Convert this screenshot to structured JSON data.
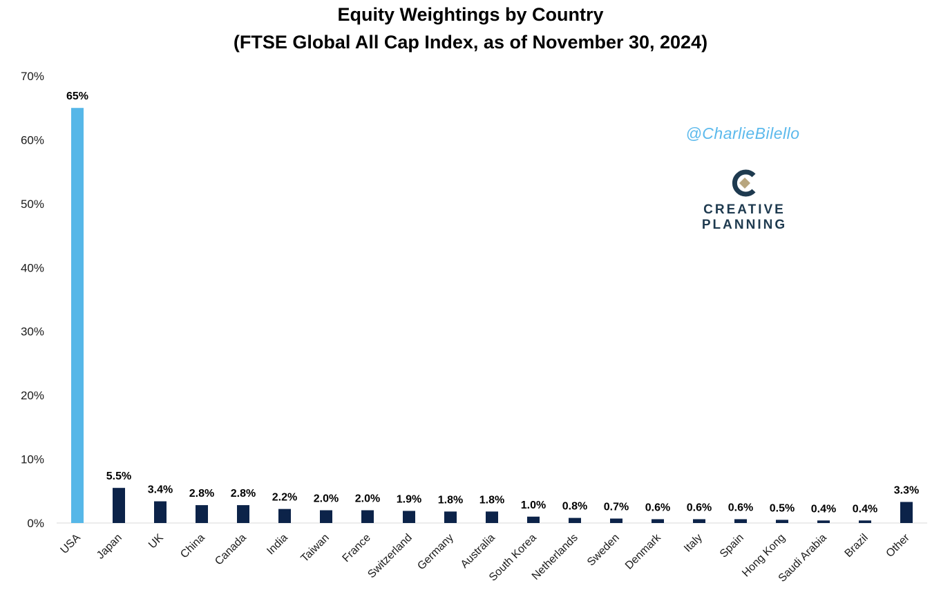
{
  "chart_data": {
    "type": "bar",
    "title": "Equity Weightings by Country",
    "subtitle": "(FTSE Global All Cap Index, as of November 30, 2024)",
    "xlabel": "",
    "ylabel": "",
    "ylim": [
      0,
      70
    ],
    "yticks": [
      0,
      10,
      20,
      30,
      40,
      50,
      60,
      70
    ],
    "ytick_labels": [
      "0%",
      "10%",
      "20%",
      "30%",
      "40%",
      "50%",
      "60%",
      "70%"
    ],
    "categories": [
      "USA",
      "Japan",
      "UK",
      "China",
      "Canada",
      "India",
      "Taiwan",
      "France",
      "Switzerland",
      "Germany",
      "Australia",
      "South Korea",
      "Netherlands",
      "Sweden",
      "Denmark",
      "Italy",
      "Spain",
      "Hong Kong",
      "Saudi Arabia",
      "Brazil",
      "Other"
    ],
    "values": [
      65,
      5.5,
      3.4,
      2.8,
      2.8,
      2.2,
      2.0,
      2.0,
      1.9,
      1.8,
      1.8,
      1.0,
      0.8,
      0.7,
      0.6,
      0.6,
      0.6,
      0.5,
      0.4,
      0.4,
      3.3
    ],
    "data_labels": [
      "65%",
      "5.5%",
      "3.4%",
      "2.8%",
      "2.8%",
      "2.2%",
      "2.0%",
      "2.0%",
      "1.9%",
      "1.8%",
      "1.8%",
      "1.0%",
      "0.8%",
      "0.7%",
      "0.6%",
      "0.6%",
      "0.6%",
      "0.5%",
      "0.4%",
      "0.4%",
      "3.3%"
    ],
    "colors": {
      "highlight": "#56b7e8",
      "default": "#0c2349"
    },
    "grid": false,
    "legend": "none"
  },
  "watermark": "@CharlieBilello",
  "logo": {
    "line1": "CREATIVE",
    "line2": "PLANNING",
    "icon": "creative-planning-logo-icon",
    "colors": [
      "#1e3a4f",
      "#b8a67f"
    ]
  }
}
